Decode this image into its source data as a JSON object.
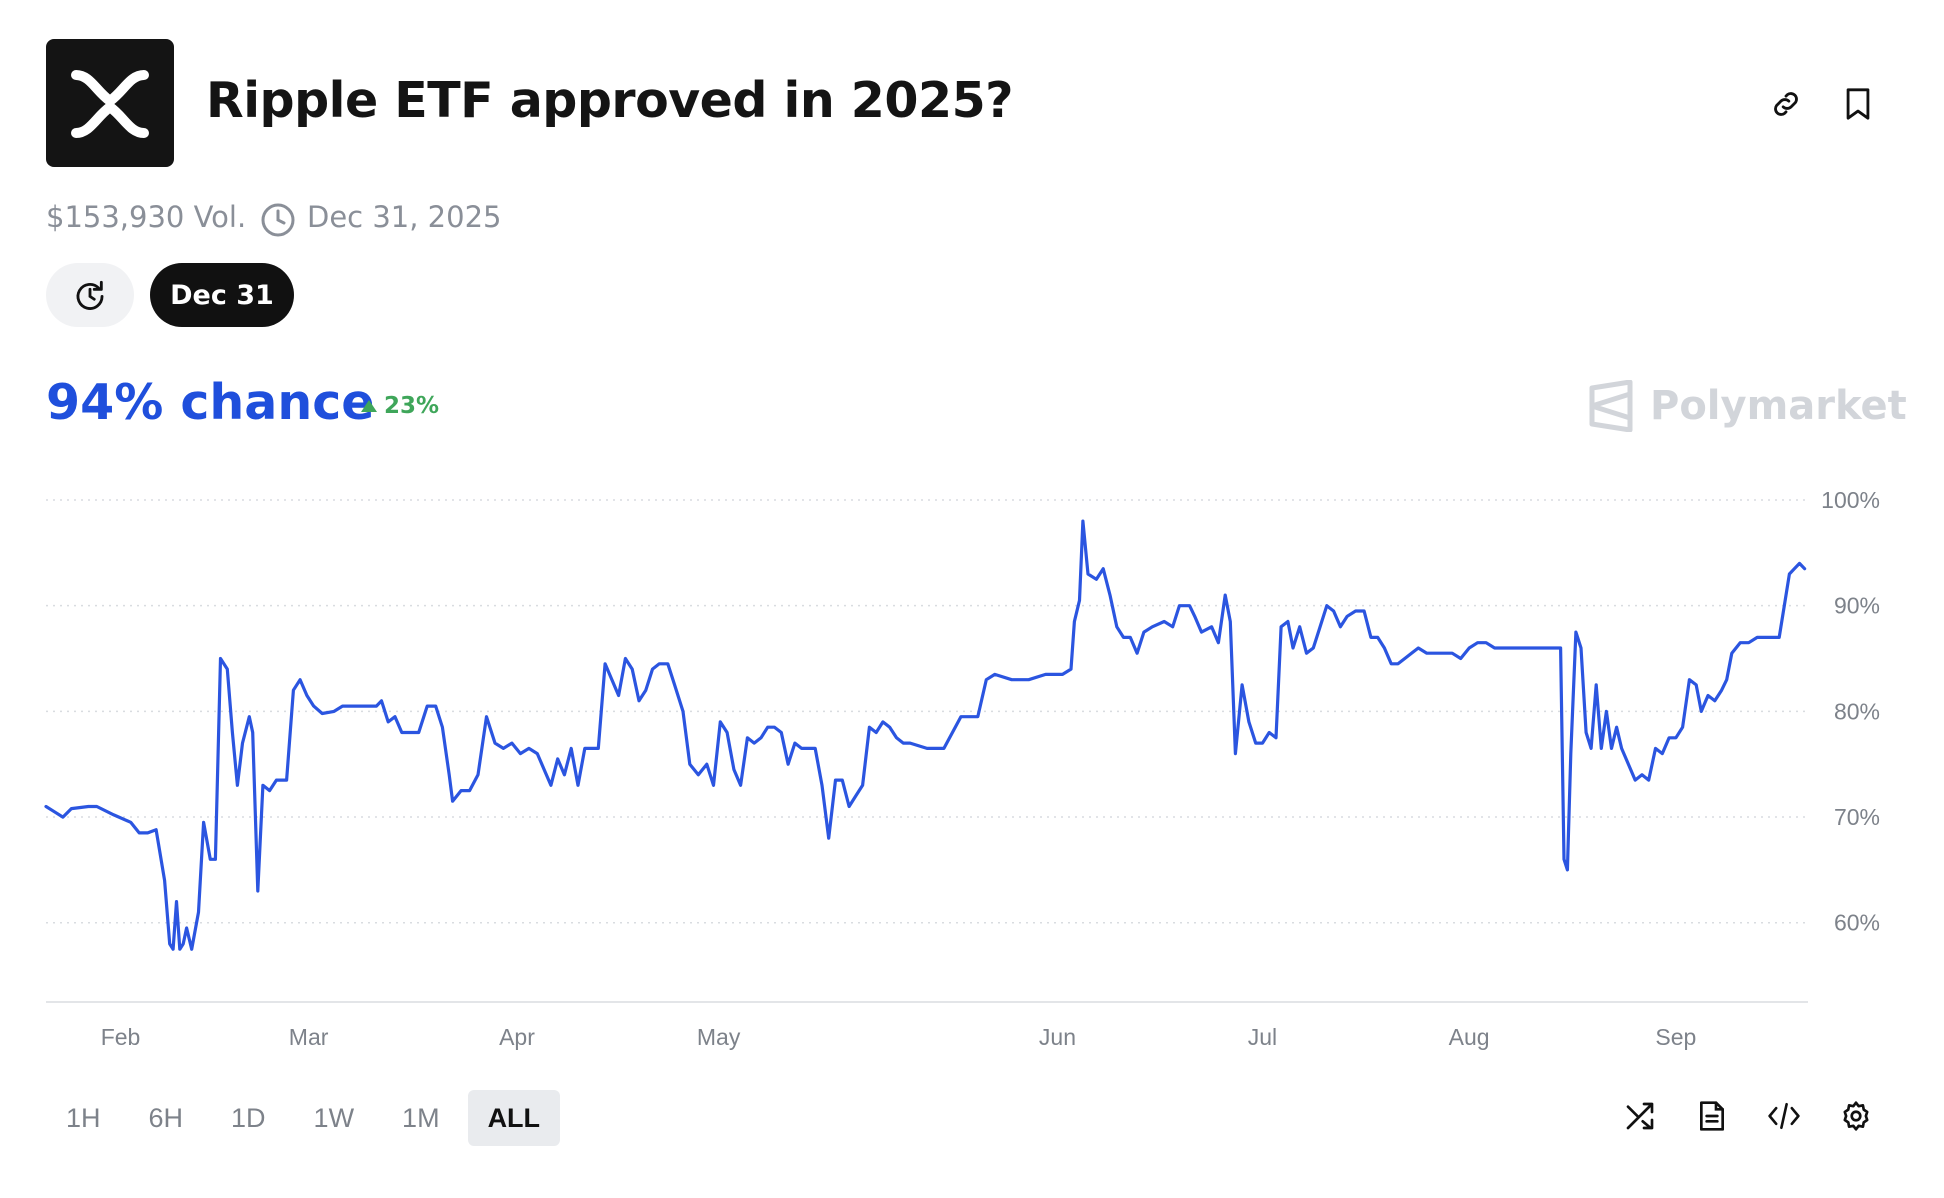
{
  "header": {
    "title": "Ripple ETF approved in 2025?",
    "logo_icon": "xrp-x-logo",
    "actions": [
      {
        "name": "link-icon"
      },
      {
        "name": "bookmark-icon"
      }
    ]
  },
  "meta": {
    "volume": "$153,930 Vol.",
    "end_date": "Dec 31, 2025",
    "end_icon": "clock-icon"
  },
  "filters": {
    "history_icon": "history-clock-icon",
    "date_pill": "Dec 31"
  },
  "summary": {
    "chance": "94% chance",
    "delta": "23%",
    "delta_direction": "up",
    "delta_color": "#3fa65a",
    "chance_color": "#1f4fdc"
  },
  "brand": {
    "name": "Polymarket",
    "icon": "polymarket-logo-icon"
  },
  "chart_data": {
    "type": "line",
    "title": "",
    "xlabel": "",
    "ylabel": "",
    "x_ticks": [
      "Feb",
      "Mar",
      "Apr",
      "May",
      "Jun",
      "Jul",
      "Aug",
      "Sep"
    ],
    "y_ticks": [
      "100%",
      "90%",
      "80%",
      "70%",
      "60%"
    ],
    "ylim": [
      52.5,
      100
    ],
    "y_axis_side": "right",
    "grid": "horizontal dotted",
    "line_color": "#2b55e0",
    "series": [
      {
        "points": [
          [
            0.0,
            71
          ],
          [
            0.5,
            70.5
          ],
          [
            1.0,
            70
          ],
          [
            1.5,
            70.8
          ],
          [
            2.5,
            71
          ],
          [
            3.0,
            71
          ],
          [
            4.0,
            70.2
          ],
          [
            5.0,
            69.5
          ],
          [
            5.5,
            68.5
          ],
          [
            6.0,
            68.5
          ],
          [
            6.5,
            68.8
          ],
          [
            7.0,
            64
          ],
          [
            7.3,
            58
          ],
          [
            7.5,
            57.5
          ],
          [
            7.7,
            62
          ],
          [
            7.9,
            57.5
          ],
          [
            8.1,
            58
          ],
          [
            8.3,
            59.5
          ],
          [
            8.6,
            57.5
          ],
          [
            9.0,
            61
          ],
          [
            9.3,
            69.5
          ],
          [
            9.7,
            66
          ],
          [
            10.0,
            66
          ],
          [
            10.3,
            85
          ],
          [
            10.7,
            84
          ],
          [
            11.0,
            78
          ],
          [
            11.3,
            73
          ],
          [
            11.6,
            77
          ],
          [
            12.0,
            79.5
          ],
          [
            12.2,
            78
          ],
          [
            12.5,
            63
          ],
          [
            12.8,
            73
          ],
          [
            13.2,
            72.5
          ],
          [
            13.6,
            73.5
          ],
          [
            14.2,
            73.5
          ],
          [
            14.6,
            82
          ],
          [
            15.0,
            83
          ],
          [
            15.4,
            81.5
          ],
          [
            15.8,
            80.5
          ],
          [
            16.3,
            79.8
          ],
          [
            17.0,
            80
          ],
          [
            17.5,
            80.5
          ],
          [
            18.5,
            80.5
          ],
          [
            19.5,
            80.5
          ],
          [
            19.8,
            81
          ],
          [
            20.2,
            79
          ],
          [
            20.6,
            79.5
          ],
          [
            21.0,
            78
          ],
          [
            22.0,
            78
          ],
          [
            22.5,
            80.5
          ],
          [
            23.0,
            80.5
          ],
          [
            23.4,
            78.5
          ],
          [
            23.8,
            74
          ],
          [
            24.0,
            71.5
          ],
          [
            24.5,
            72.5
          ],
          [
            25.0,
            72.5
          ],
          [
            25.5,
            74
          ],
          [
            26.0,
            79.5
          ],
          [
            26.5,
            77
          ],
          [
            27.0,
            76.5
          ],
          [
            27.5,
            77
          ],
          [
            28.0,
            76
          ],
          [
            28.5,
            76.5
          ],
          [
            29.0,
            76
          ],
          [
            29.4,
            74.5
          ],
          [
            29.8,
            73
          ],
          [
            30.2,
            75.5
          ],
          [
            30.6,
            74
          ],
          [
            31.0,
            76.5
          ],
          [
            31.4,
            73
          ],
          [
            31.8,
            76.5
          ],
          [
            32.2,
            76.5
          ],
          [
            32.6,
            76.5
          ],
          [
            33.0,
            84.5
          ],
          [
            33.4,
            83
          ],
          [
            33.8,
            81.5
          ],
          [
            34.2,
            85
          ],
          [
            34.6,
            84
          ],
          [
            35.0,
            81
          ],
          [
            35.4,
            82
          ],
          [
            35.8,
            84
          ],
          [
            36.2,
            84.5
          ],
          [
            36.7,
            84.5
          ],
          [
            37.1,
            82.5
          ],
          [
            37.6,
            80
          ],
          [
            38.0,
            75
          ],
          [
            38.5,
            74
          ],
          [
            39.0,
            75
          ],
          [
            39.4,
            73
          ],
          [
            39.8,
            79
          ],
          [
            40.2,
            78
          ],
          [
            40.6,
            74.5
          ],
          [
            41.0,
            73
          ],
          [
            41.4,
            77.5
          ],
          [
            41.8,
            77
          ],
          [
            42.2,
            77.5
          ],
          [
            42.6,
            78.5
          ],
          [
            43.0,
            78.5
          ],
          [
            43.4,
            78
          ],
          [
            43.8,
            75
          ],
          [
            44.2,
            77
          ],
          [
            44.6,
            76.5
          ],
          [
            45.0,
            76.5
          ],
          [
            45.4,
            76.5
          ],
          [
            45.8,
            73
          ],
          [
            46.2,
            68
          ],
          [
            46.6,
            73.5
          ],
          [
            47.0,
            73.5
          ],
          [
            47.4,
            71
          ],
          [
            47.8,
            72
          ],
          [
            48.2,
            73
          ],
          [
            48.6,
            78.5
          ],
          [
            49.0,
            78
          ],
          [
            49.4,
            79
          ],
          [
            49.8,
            78.5
          ],
          [
            50.2,
            77.5
          ],
          [
            50.6,
            77
          ],
          [
            51.0,
            77
          ],
          [
            52.0,
            76.5
          ],
          [
            53.0,
            76.5
          ],
          [
            54.0,
            79.5
          ],
          [
            55.0,
            79.5
          ],
          [
            55.5,
            83
          ],
          [
            56.0,
            83.5
          ],
          [
            57.0,
            83
          ],
          [
            58.0,
            83
          ],
          [
            59.0,
            83.5
          ],
          [
            60.0,
            83.5
          ],
          [
            60.5,
            84
          ],
          [
            60.7,
            88.5
          ],
          [
            61.0,
            90.5
          ],
          [
            61.2,
            98
          ],
          [
            61.5,
            93
          ],
          [
            62.0,
            92.5
          ],
          [
            62.4,
            93.5
          ],
          [
            62.8,
            91
          ],
          [
            63.2,
            88
          ],
          [
            63.6,
            87
          ],
          [
            64.0,
            87
          ],
          [
            64.4,
            85.5
          ],
          [
            64.8,
            87.5
          ],
          [
            65.3,
            88
          ],
          [
            66.0,
            88.5
          ],
          [
            66.5,
            88
          ],
          [
            66.9,
            90
          ],
          [
            67.5,
            90
          ],
          [
            67.8,
            89
          ],
          [
            68.2,
            87.5
          ],
          [
            68.8,
            88
          ],
          [
            69.2,
            86.5
          ],
          [
            69.6,
            91
          ],
          [
            69.9,
            88.5
          ],
          [
            70.2,
            76
          ],
          [
            70.6,
            82.5
          ],
          [
            71.0,
            79
          ],
          [
            71.4,
            77
          ],
          [
            71.8,
            77
          ],
          [
            72.2,
            78
          ],
          [
            72.6,
            77.5
          ],
          [
            72.9,
            88
          ],
          [
            73.3,
            88.5
          ],
          [
            73.6,
            86
          ],
          [
            74.0,
            88
          ],
          [
            74.4,
            85.5
          ],
          [
            74.8,
            86
          ],
          [
            75.2,
            88
          ],
          [
            75.6,
            90
          ],
          [
            76.0,
            89.5
          ],
          [
            76.4,
            88
          ],
          [
            76.8,
            89
          ],
          [
            77.3,
            89.5
          ],
          [
            77.8,
            89.5
          ],
          [
            78.2,
            87
          ],
          [
            78.6,
            87
          ],
          [
            79.0,
            86
          ],
          [
            79.4,
            84.5
          ],
          [
            79.8,
            84.5
          ],
          [
            80.2,
            85
          ],
          [
            80.6,
            85.5
          ],
          [
            81.0,
            86
          ],
          [
            81.5,
            85.5
          ],
          [
            82.0,
            85.5
          ],
          [
            82.5,
            85.5
          ],
          [
            83.0,
            85.5
          ],
          [
            83.5,
            85
          ],
          [
            84.0,
            86
          ],
          [
            84.5,
            86.5
          ],
          [
            85.0,
            86.5
          ],
          [
            85.5,
            86
          ],
          [
            86.0,
            86
          ],
          [
            87.0,
            86
          ],
          [
            87.5,
            86
          ],
          [
            88.0,
            86
          ],
          [
            88.5,
            86
          ],
          [
            89.0,
            86
          ],
          [
            89.4,
            86
          ],
          [
            89.6,
            66
          ],
          [
            89.8,
            65
          ],
          [
            90.0,
            76
          ],
          [
            90.3,
            87.5
          ],
          [
            90.6,
            86
          ],
          [
            90.9,
            78
          ],
          [
            91.2,
            76.5
          ],
          [
            91.5,
            82.5
          ],
          [
            91.8,
            76.5
          ],
          [
            92.1,
            80
          ],
          [
            92.4,
            76.5
          ],
          [
            92.7,
            78.5
          ],
          [
            93.0,
            76.5
          ],
          [
            93.4,
            75
          ],
          [
            93.8,
            73.5
          ],
          [
            94.2,
            74
          ],
          [
            94.6,
            73.5
          ],
          [
            95.0,
            76.5
          ],
          [
            95.4,
            76
          ],
          [
            95.8,
            77.5
          ],
          [
            96.2,
            77.5
          ],
          [
            96.6,
            78.5
          ],
          [
            97.0,
            83
          ],
          [
            97.4,
            82.5
          ],
          [
            97.7,
            80
          ],
          [
            98.1,
            81.5
          ],
          [
            98.5,
            81
          ],
          [
            98.9,
            82
          ],
          [
            99.2,
            83
          ],
          [
            99.5,
            85.5
          ],
          [
            100.0,
            86.5
          ],
          [
            100.5,
            86.5
          ],
          [
            101.0,
            87
          ],
          [
            101.5,
            87
          ],
          [
            102.0,
            87
          ],
          [
            102.3,
            87
          ],
          [
            102.6,
            90
          ],
          [
            102.9,
            93
          ],
          [
            103.2,
            93.5
          ],
          [
            103.5,
            94
          ],
          [
            103.8,
            93.5
          ]
        ]
      }
    ]
  },
  "range_tabs": [
    {
      "label": "1H",
      "active": false
    },
    {
      "label": "6H",
      "active": false
    },
    {
      "label": "1D",
      "active": false
    },
    {
      "label": "1W",
      "active": false
    },
    {
      "label": "1M",
      "active": false
    },
    {
      "label": "ALL",
      "active": true
    }
  ],
  "chart_tools": [
    {
      "name": "shuffle-icon"
    },
    {
      "name": "document-icon"
    },
    {
      "name": "code-embed-icon"
    },
    {
      "name": "settings-gear-icon"
    }
  ]
}
